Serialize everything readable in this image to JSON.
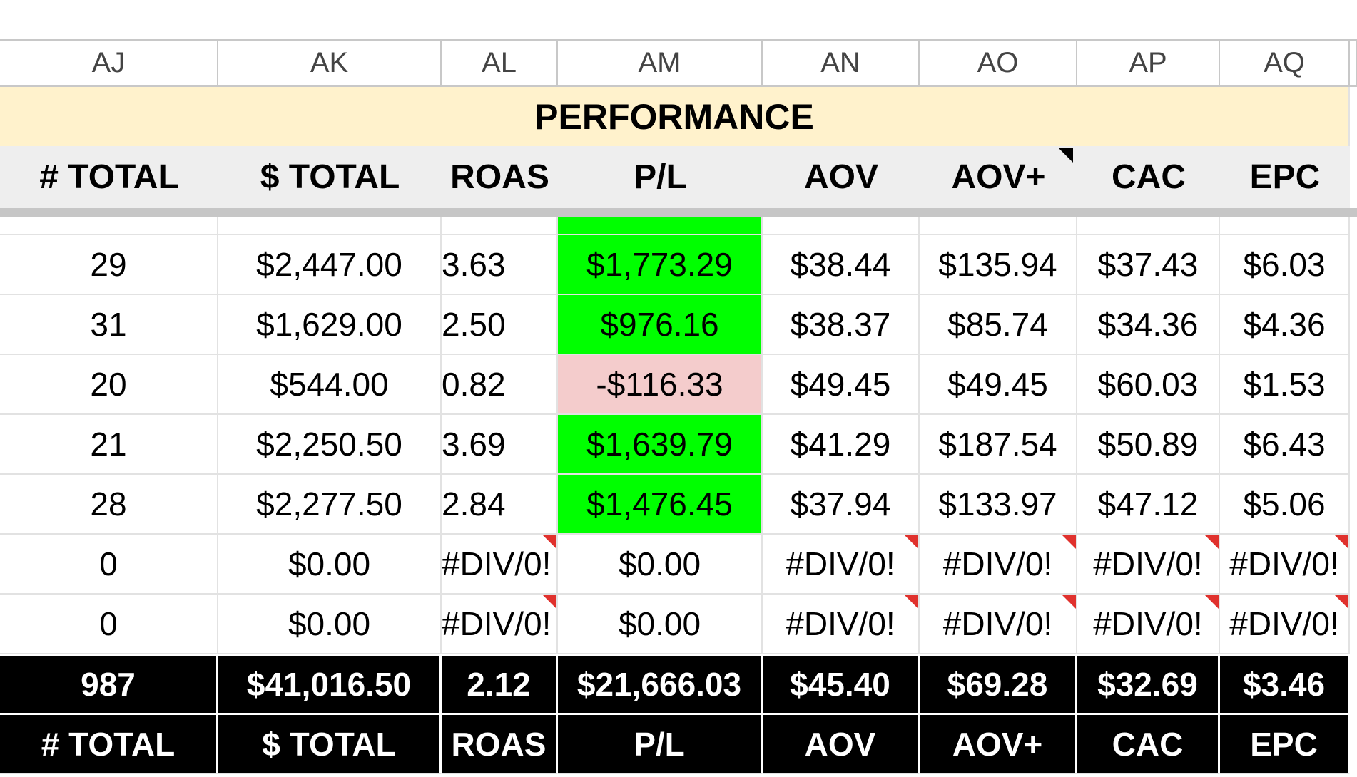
{
  "columns": [
    "AJ",
    "AK",
    "AL",
    "AM",
    "AN",
    "AO",
    "AP",
    "AQ"
  ],
  "section": "PERFORMANCE",
  "headers": [
    "# TOTAL",
    "$ TOTAL",
    "ROAS",
    "P/L",
    "AOV",
    "AOV+",
    "CAC",
    "EPC"
  ],
  "rows": [
    [
      "29",
      "$2,447.00",
      "3.63",
      "$1,773.29",
      "$38.44",
      "$135.94",
      "$37.43",
      "$6.03"
    ],
    [
      "31",
      "$1,629.00",
      "2.50",
      "$976.16",
      "$38.37",
      "$85.74",
      "$34.36",
      "$4.36"
    ],
    [
      "20",
      "$544.00",
      "0.82",
      "-$116.33",
      "$49.45",
      "$49.45",
      "$60.03",
      "$1.53"
    ],
    [
      "21",
      "$2,250.50",
      "3.69",
      "$1,639.79",
      "$41.29",
      "$187.54",
      "$50.89",
      "$6.43"
    ],
    [
      "28",
      "$2,277.50",
      "2.84",
      "$1,476.45",
      "$37.94",
      "$133.97",
      "$47.12",
      "$5.06"
    ],
    [
      "0",
      "$0.00",
      "#DIV/0!",
      "$0.00",
      "#DIV/0!",
      "#DIV/0!",
      "#DIV/0!",
      "#DIV/0!"
    ],
    [
      "0",
      "$0.00",
      "#DIV/0!",
      "$0.00",
      "#DIV/0!",
      "#DIV/0!",
      "#DIV/0!",
      "#DIV/0!"
    ]
  ],
  "pl_fill": [
    "#00ff00",
    "#00ff00",
    "#f4cccc",
    "#00ff00",
    "#00ff00",
    "#ffffff",
    "#ffffff"
  ],
  "totals": [
    "987",
    "$41,016.50",
    "2.12",
    "$21,666.03",
    "$45.40",
    "$69.28",
    "$32.69",
    "$3.46"
  ],
  "footer_headers": [
    "# TOTAL",
    "$ TOTAL",
    "ROAS",
    "P/L",
    "AOV",
    "AOV+",
    "CAC",
    "EPC"
  ]
}
